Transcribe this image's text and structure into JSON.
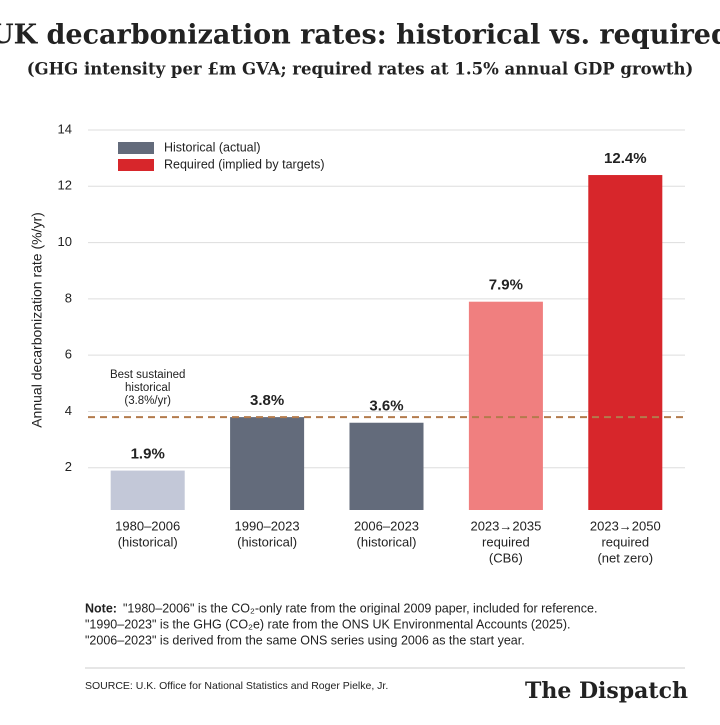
{
  "chart_data": {
    "type": "bar",
    "title": "UK decarbonization rates: historical vs. required",
    "subtitle": "(GHG intensity per £m GVA; required rates at 1.5% annual GDP growth)",
    "y_label": "Annual decarbonization rate (%/yr)",
    "categories": [
      [
        "1980–2006",
        "(historical)"
      ],
      [
        "1990–2023",
        "(historical)"
      ],
      [
        "2006–2023",
        "(historical)"
      ],
      [
        "2023→2035",
        "required",
        "(CB6)"
      ],
      [
        "2023→2050",
        "required",
        "(net zero)"
      ]
    ],
    "values": [
      1.9,
      3.8,
      3.6,
      7.9,
      12.4
    ],
    "value_labels": [
      "1.9%",
      "3.8%",
      "3.6%",
      "7.9%",
      "12.4%"
    ],
    "colors": [
      "#c3c8d8",
      "#636b7b",
      "#636b7b",
      "#f07f7f",
      "#d7262b"
    ],
    "legend": [
      {
        "name": "Historical (actual)",
        "color": "#636b7b"
      },
      {
        "name": "Required (implied by targets)",
        "color": "#d7262b"
      }
    ],
    "reference_line": {
      "value": 3.8,
      "color": "#b37b4c",
      "label": [
        "Best sustained",
        "historical",
        "(3.8%/yr)"
      ]
    },
    "ylim": [
      0.5,
      14
    ],
    "yticks": [
      2,
      4,
      6,
      8,
      10,
      12,
      14
    ],
    "grid": true,
    "note": {
      "label": "Note:",
      "lines": [
        "\"1980–2006\" is the CO₂-only rate from the original 2009 paper, included for reference.",
        "\"1990–2023\" is the GHG (CO₂e) rate from the ONS UK Environmental Accounts (2025).",
        "\"2006–2023\" is derived from the same ONS series using 2006 as the start year."
      ]
    },
    "source": "SOURCE: U.K. Office for National Statistics and Roger Pielke, Jr.",
    "brand": "The Dispatch"
  }
}
